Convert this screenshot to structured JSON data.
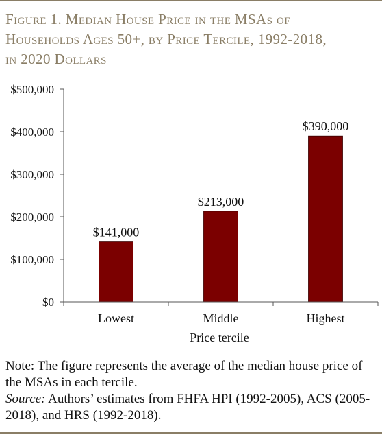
{
  "title_line1": "Figure 1. Median House Price in the MSAs of",
  "title_line2": "Households Ages 50+, by Price Tercile, 1992-2018,",
  "title_line3": "in 2020 Dollars",
  "colors": {
    "title": "#8a7e66",
    "bar": "#7b0000",
    "rule": "#8a7e66",
    "axis": "#555555"
  },
  "chart_data": {
    "type": "bar",
    "title": "Median House Price in the MSAs of Households Ages 50+, by Price Tercile, 1992-2018, in 2020 Dollars",
    "categories": [
      "Lowest",
      "Middle",
      "Highest"
    ],
    "values": [
      141000,
      213000,
      390000
    ],
    "data_labels": [
      "$141,000",
      "$213,000",
      "$390,000"
    ],
    "xlabel": "Price tercile",
    "ylabel": "",
    "ylim": [
      0,
      500000
    ],
    "yticks": [
      0,
      100000,
      200000,
      300000,
      400000,
      500000
    ],
    "ytick_labels": [
      "$0",
      "$100,000",
      "$200,000",
      "$300,000",
      "$400,000",
      "$500,000"
    ],
    "grid": false,
    "legend": "none"
  },
  "notes": {
    "note": "Note: The figure represents the average of the median house price of the MSAs in each tercile.",
    "source_label": "Source:",
    "source_text": " Authors’ estimates from FHFA HPI (1992-2005), ACS (2005-2018), and HRS (1992-2018)."
  }
}
